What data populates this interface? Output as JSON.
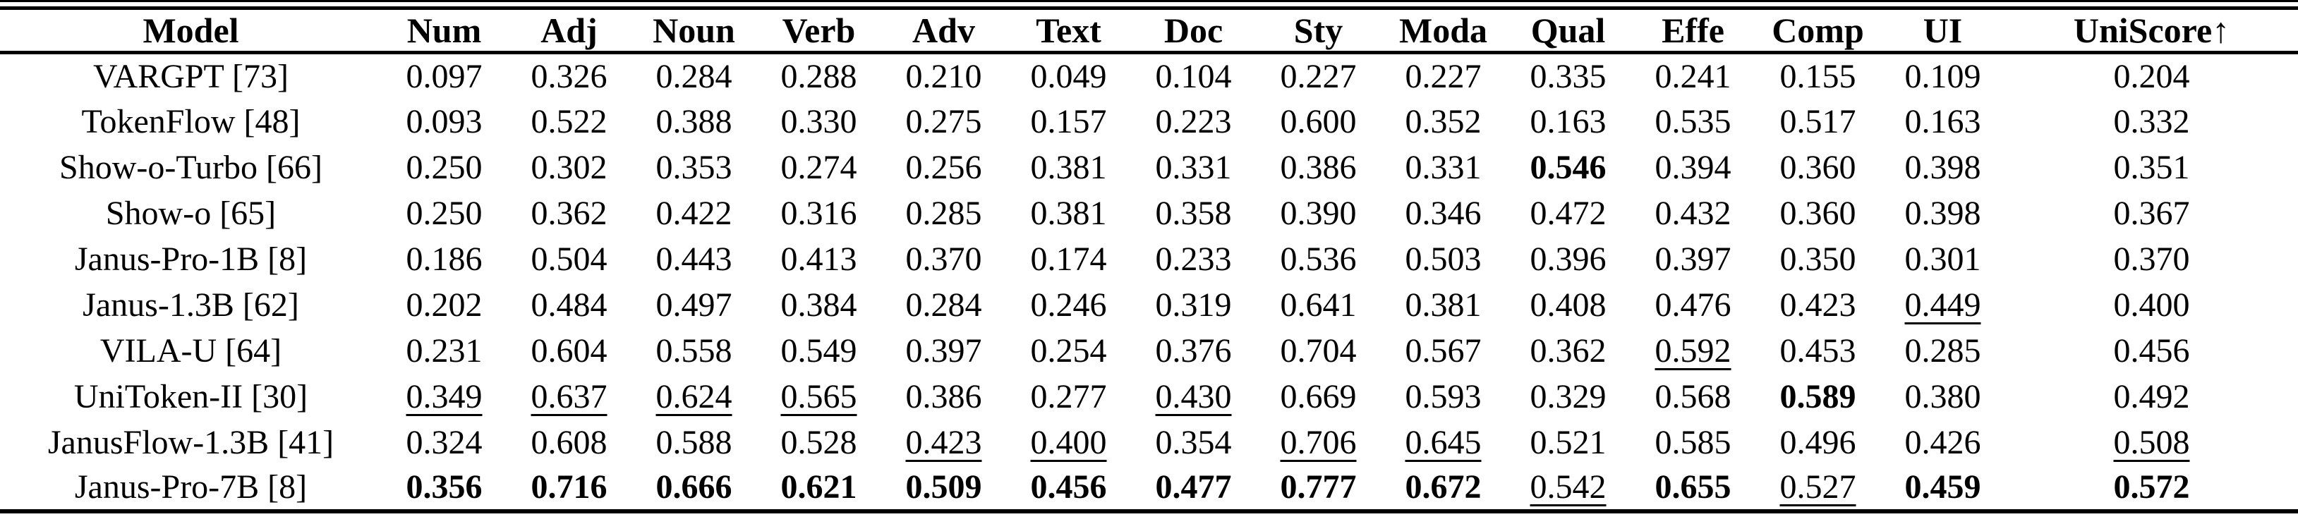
{
  "colors": {
    "background": "#ffffff",
    "text": "#000000",
    "rules": "#000000"
  },
  "table": {
    "columns": [
      "Model",
      "Num",
      "Adj",
      "Noun",
      "Verb",
      "Adv",
      "Text",
      "Doc",
      "Sty",
      "Moda",
      "Qual",
      "Effe",
      "Comp",
      "UI",
      "UniScore↑"
    ],
    "style_legend": {
      "n": "normal",
      "b": "bold",
      "u": "underline"
    },
    "rows": [
      {
        "model": "VARGPT [73]",
        "values": [
          "0.097",
          "0.326",
          "0.284",
          "0.288",
          "0.210",
          "0.049",
          "0.104",
          "0.227",
          "0.227",
          "0.335",
          "0.241",
          "0.155",
          "0.109",
          "0.204"
        ],
        "styles": [
          "n",
          "n",
          "n",
          "n",
          "n",
          "n",
          "n",
          "n",
          "n",
          "n",
          "n",
          "n",
          "n",
          "n"
        ]
      },
      {
        "model": "TokenFlow [48]",
        "values": [
          "0.093",
          "0.522",
          "0.388",
          "0.330",
          "0.275",
          "0.157",
          "0.223",
          "0.600",
          "0.352",
          "0.163",
          "0.535",
          "0.517",
          "0.163",
          "0.332"
        ],
        "styles": [
          "n",
          "n",
          "n",
          "n",
          "n",
          "n",
          "n",
          "n",
          "n",
          "n",
          "n",
          "n",
          "n",
          "n"
        ]
      },
      {
        "model": "Show-o-Turbo [66]",
        "values": [
          "0.250",
          "0.302",
          "0.353",
          "0.274",
          "0.256",
          "0.381",
          "0.331",
          "0.386",
          "0.331",
          "0.546",
          "0.394",
          "0.360",
          "0.398",
          "0.351"
        ],
        "styles": [
          "n",
          "n",
          "n",
          "n",
          "n",
          "n",
          "n",
          "n",
          "n",
          "b",
          "n",
          "n",
          "n",
          "n"
        ]
      },
      {
        "model": "Show-o [65]",
        "values": [
          "0.250",
          "0.362",
          "0.422",
          "0.316",
          "0.285",
          "0.381",
          "0.358",
          "0.390",
          "0.346",
          "0.472",
          "0.432",
          "0.360",
          "0.398",
          "0.367"
        ],
        "styles": [
          "n",
          "n",
          "n",
          "n",
          "n",
          "n",
          "n",
          "n",
          "n",
          "n",
          "n",
          "n",
          "n",
          "n"
        ]
      },
      {
        "model": "Janus-Pro-1B [8]",
        "values": [
          "0.186",
          "0.504",
          "0.443",
          "0.413",
          "0.370",
          "0.174",
          "0.233",
          "0.536",
          "0.503",
          "0.396",
          "0.397",
          "0.350",
          "0.301",
          "0.370"
        ],
        "styles": [
          "n",
          "n",
          "n",
          "n",
          "n",
          "n",
          "n",
          "n",
          "n",
          "n",
          "n",
          "n",
          "n",
          "n"
        ]
      },
      {
        "model": "Janus-1.3B [62]",
        "values": [
          "0.202",
          "0.484",
          "0.497",
          "0.384",
          "0.284",
          "0.246",
          "0.319",
          "0.641",
          "0.381",
          "0.408",
          "0.476",
          "0.423",
          "0.449",
          "0.400"
        ],
        "styles": [
          "n",
          "n",
          "n",
          "n",
          "n",
          "n",
          "n",
          "n",
          "n",
          "n",
          "n",
          "n",
          "u",
          "n"
        ]
      },
      {
        "model": "VILA-U [64]",
        "values": [
          "0.231",
          "0.604",
          "0.558",
          "0.549",
          "0.397",
          "0.254",
          "0.376",
          "0.704",
          "0.567",
          "0.362",
          "0.592",
          "0.453",
          "0.285",
          "0.456"
        ],
        "styles": [
          "n",
          "n",
          "n",
          "n",
          "n",
          "n",
          "n",
          "n",
          "n",
          "n",
          "u",
          "n",
          "n",
          "n"
        ]
      },
      {
        "model": "UniToken-II [30]",
        "values": [
          "0.349",
          "0.637",
          "0.624",
          "0.565",
          "0.386",
          "0.277",
          "0.430",
          "0.669",
          "0.593",
          "0.329",
          "0.568",
          "0.589",
          "0.380",
          "0.492"
        ],
        "styles": [
          "u",
          "u",
          "u",
          "u",
          "n",
          "n",
          "u",
          "n",
          "n",
          "n",
          "n",
          "b",
          "n",
          "n"
        ]
      },
      {
        "model": "JanusFlow-1.3B [41]",
        "values": [
          "0.324",
          "0.608",
          "0.588",
          "0.528",
          "0.423",
          "0.400",
          "0.354",
          "0.706",
          "0.645",
          "0.521",
          "0.585",
          "0.496",
          "0.426",
          "0.508"
        ],
        "styles": [
          "n",
          "n",
          "n",
          "n",
          "u",
          "u",
          "n",
          "u",
          "u",
          "n",
          "n",
          "n",
          "n",
          "u"
        ]
      },
      {
        "model": "Janus-Pro-7B [8]",
        "values": [
          "0.356",
          "0.716",
          "0.666",
          "0.621",
          "0.509",
          "0.456",
          "0.477",
          "0.777",
          "0.672",
          "0.542",
          "0.655",
          "0.527",
          "0.459",
          "0.572"
        ],
        "styles": [
          "b",
          "b",
          "b",
          "b",
          "b",
          "b",
          "b",
          "b",
          "b",
          "u",
          "b",
          "u",
          "b",
          "b"
        ]
      }
    ]
  }
}
